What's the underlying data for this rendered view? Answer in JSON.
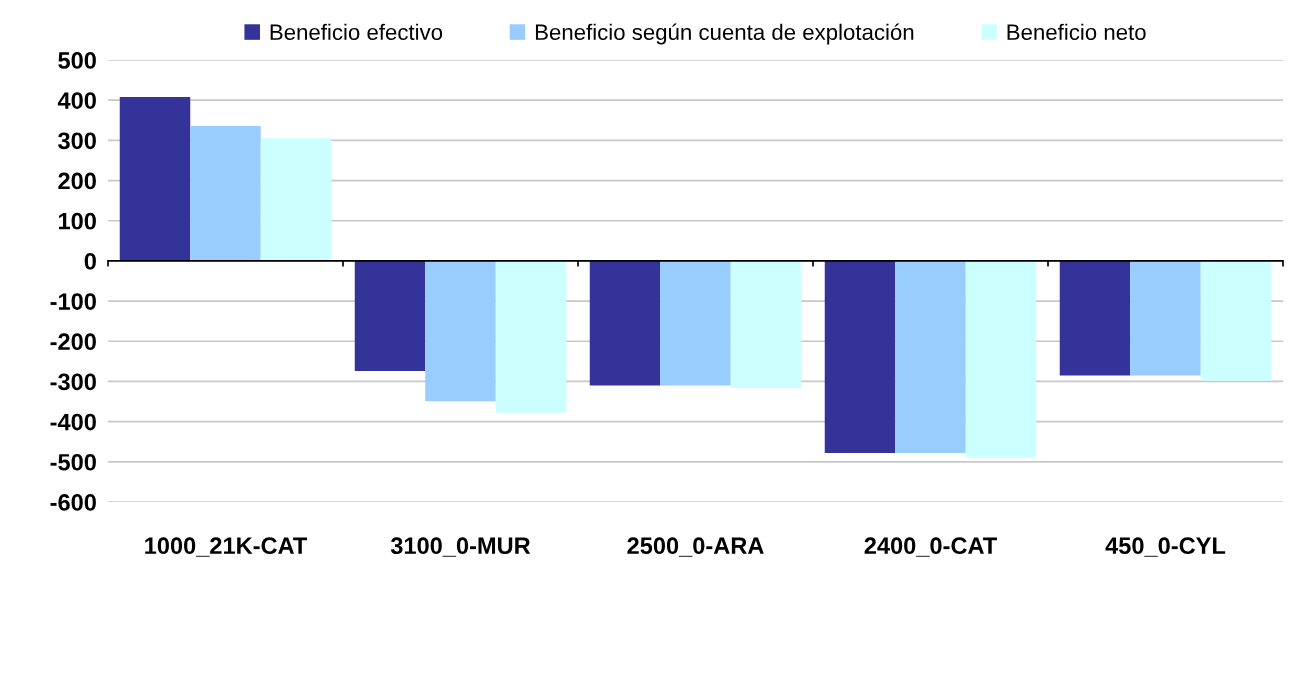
{
  "chart_data": {
    "type": "bar",
    "categories": [
      "1000_21K-CAT",
      "3100_0-MUR",
      "2500_0-ARA",
      "2400_0-CAT",
      "450_0-CYL"
    ],
    "series": [
      {
        "name": "Beneficio efectivo",
        "color": "#333399",
        "values": [
          408,
          -274,
          -310,
          -478,
          -285
        ]
      },
      {
        "name": "Beneficio según cuenta de explotación",
        "color": "#99ccff",
        "values": [
          336,
          -349,
          -310,
          -478,
          -285
        ]
      },
      {
        "name": "Beneficio neto",
        "color": "#ccffff",
        "values": [
          305,
          -378,
          -316,
          -489,
          -298
        ]
      }
    ],
    "ylim": [
      -600,
      500
    ],
    "yticks": [
      -600,
      -500,
      -400,
      -300,
      -200,
      -100,
      0,
      100,
      200,
      300,
      400,
      500
    ],
    "grid": "y",
    "legend": "top"
  }
}
